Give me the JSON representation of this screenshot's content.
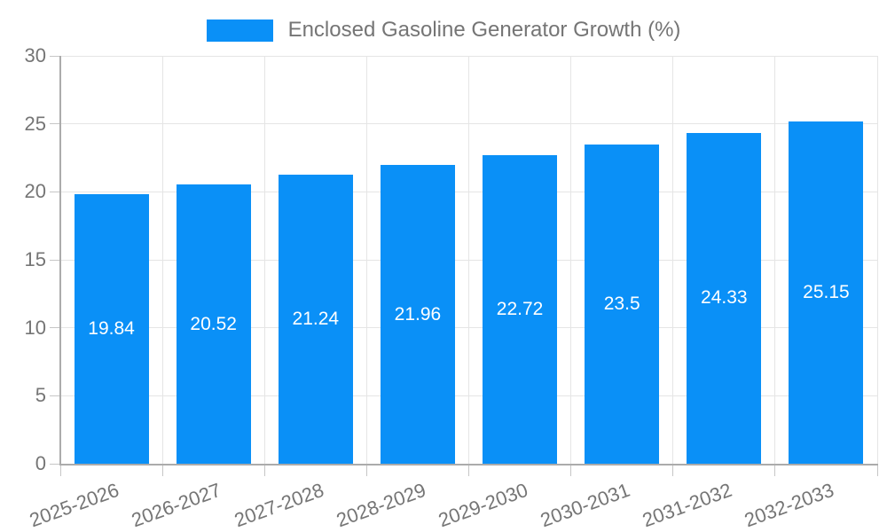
{
  "legend": {
    "label": "Enclosed Gasoline Generator Growth (%)"
  },
  "chart_data": {
    "type": "bar",
    "title": "",
    "xlabel": "",
    "ylabel": "",
    "series_name": "Enclosed Gasoline Generator Growth (%)",
    "categories": [
      "2025-2026",
      "2026-2027",
      "2027-2028",
      "2028-2029",
      "2029-2030",
      "2030-2031",
      "2031-2032",
      "2032-2033"
    ],
    "values": [
      19.84,
      20.52,
      21.24,
      21.96,
      22.72,
      23.5,
      24.33,
      25.15
    ],
    "value_labels": [
      "19.84",
      "20.52",
      "21.24",
      "21.96",
      "22.72",
      "23.5",
      "24.33",
      "25.15"
    ],
    "ylim": [
      0,
      30
    ],
    "yticks": [
      0,
      5,
      10,
      15,
      20,
      25,
      30
    ],
    "grid": true,
    "legend_position": "top-center",
    "x_label_rotation_deg": -20,
    "colors": {
      "bar": "#0A90F7",
      "value_label": "#ffffff",
      "axis_text": "#757575",
      "axis_line": "#ababab",
      "tick_line": "#c6c6c6",
      "gridline": "#e5e5e5",
      "background": "#ffffff"
    }
  }
}
